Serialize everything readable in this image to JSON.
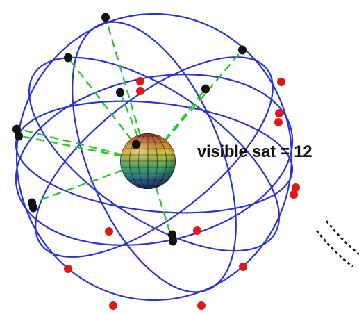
{
  "diagram": {
    "caption": "visible sat = 12",
    "visible_count": 12,
    "colors": {
      "orbit": "#2a33d6",
      "visible_satellite": "#111111",
      "hidden_satellite": "#e01818",
      "line_of_sight": "#2ec52e",
      "earth_top": "#c0342a",
      "earth_mid": "#e2c83a",
      "earth_low": "#3aa86a",
      "earth_bottom": "#2a3aa8",
      "background": "#ffffff"
    }
  }
}
